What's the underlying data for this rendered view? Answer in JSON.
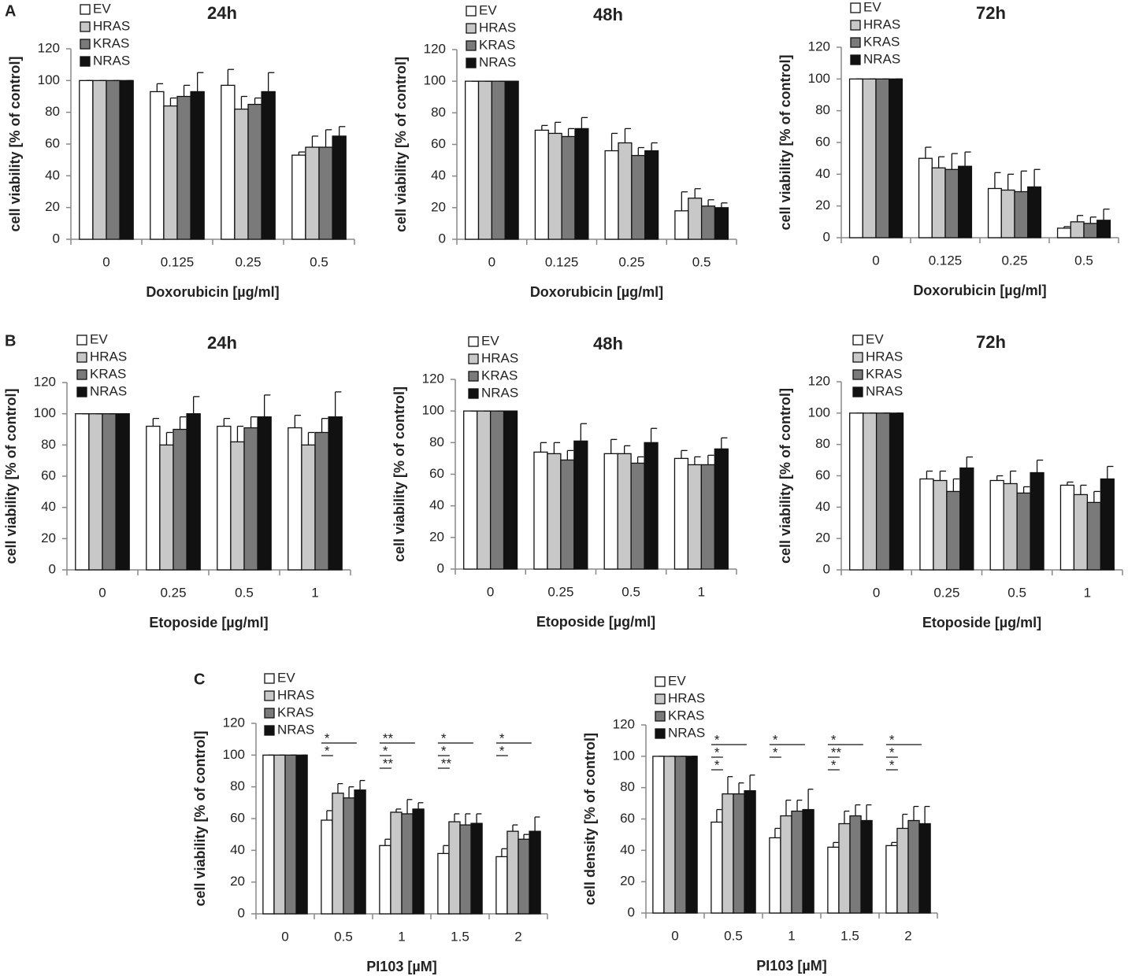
{
  "panels": [
    "A",
    "B",
    "C"
  ],
  "chart_data": [
    {
      "type": "bar",
      "title": "24h",
      "xlabel": "Doxorubicin [µg/ml]",
      "ylabel": "cell viability [% of control]",
      "categories": [
        "0",
        "0.125",
        "0.25",
        "0.5"
      ],
      "ylim": [
        0,
        120
      ],
      "yticks": [
        0,
        20,
        40,
        60,
        80,
        100,
        120
      ],
      "series": [
        {
          "name": "EV",
          "color": "#ffffff",
          "values": [
            100,
            93,
            97,
            53
          ],
          "errors": [
            0,
            5,
            10,
            2
          ]
        },
        {
          "name": "HRAS",
          "color": "#c8c8c8",
          "values": [
            100,
            84,
            82,
            58
          ],
          "errors": [
            0,
            5,
            8,
            7
          ]
        },
        {
          "name": "KRAS",
          "color": "#7a7a7a",
          "values": [
            100,
            90,
            85,
            58
          ],
          "errors": [
            0,
            7,
            4,
            11
          ]
        },
        {
          "name": "NRAS",
          "color": "#111111",
          "values": [
            100,
            93,
            93,
            65
          ],
          "errors": [
            0,
            12,
            12,
            6
          ]
        }
      ]
    },
    {
      "type": "bar",
      "title": "48h",
      "xlabel": "Doxorubicin [µg/ml]",
      "ylabel": "cell viability [% of control]",
      "categories": [
        "0",
        "0.125",
        "0.25",
        "0.5"
      ],
      "ylim": [
        0,
        120
      ],
      "yticks": [
        0,
        20,
        40,
        60,
        80,
        100,
        120
      ],
      "series": [
        {
          "name": "EV",
          "color": "#ffffff",
          "values": [
            100,
            69,
            56,
            18
          ],
          "errors": [
            0,
            3,
            11,
            12
          ]
        },
        {
          "name": "HRAS",
          "color": "#c8c8c8",
          "values": [
            100,
            67,
            61,
            26
          ],
          "errors": [
            0,
            7,
            9,
            6
          ]
        },
        {
          "name": "KRAS",
          "color": "#7a7a7a",
          "values": [
            100,
            65,
            53,
            21
          ],
          "errors": [
            0,
            5,
            5,
            4
          ]
        },
        {
          "name": "NRAS",
          "color": "#111111",
          "values": [
            100,
            70,
            56,
            20
          ],
          "errors": [
            0,
            7,
            5,
            3
          ]
        }
      ]
    },
    {
      "type": "bar",
      "title": "72h",
      "xlabel": "Doxorubicin [µg/ml]",
      "ylabel": "cell viability [% of control]",
      "categories": [
        "0",
        "0.125",
        "0.25",
        "0.5"
      ],
      "ylim": [
        0,
        120
      ],
      "yticks": [
        0,
        20,
        40,
        60,
        80,
        100,
        120
      ],
      "series": [
        {
          "name": "EV",
          "color": "#ffffff",
          "values": [
            100,
            50,
            31,
            6
          ],
          "errors": [
            0,
            7,
            10,
            1
          ]
        },
        {
          "name": "HRAS",
          "color": "#c8c8c8",
          "values": [
            100,
            44,
            30,
            10
          ],
          "errors": [
            0,
            7,
            10,
            4
          ]
        },
        {
          "name": "KRAS",
          "color": "#7a7a7a",
          "values": [
            100,
            43,
            29,
            9
          ],
          "errors": [
            0,
            10,
            13,
            4
          ]
        },
        {
          "name": "NRAS",
          "color": "#111111",
          "values": [
            100,
            45,
            32,
            11
          ],
          "errors": [
            0,
            9,
            11,
            7
          ]
        }
      ]
    },
    {
      "type": "bar",
      "title": "24h",
      "xlabel": "Etoposide [µg/ml]",
      "ylabel": "cell viability [% of control]",
      "categories": [
        "0",
        "0.25",
        "0.5",
        "1"
      ],
      "ylim": [
        0,
        120
      ],
      "yticks": [
        0,
        20,
        40,
        60,
        80,
        100,
        120
      ],
      "series": [
        {
          "name": "EV",
          "color": "#ffffff",
          "values": [
            100,
            92,
            92,
            91
          ],
          "errors": [
            0,
            5,
            5,
            8
          ]
        },
        {
          "name": "HRAS",
          "color": "#c8c8c8",
          "values": [
            100,
            80,
            82,
            80
          ],
          "errors": [
            0,
            8,
            10,
            8
          ]
        },
        {
          "name": "KRAS",
          "color": "#7a7a7a",
          "values": [
            100,
            90,
            91,
            88
          ],
          "errors": [
            0,
            8,
            7,
            9
          ]
        },
        {
          "name": "NRAS",
          "color": "#111111",
          "values": [
            100,
            100,
            98,
            98
          ],
          "errors": [
            0,
            11,
            14,
            16
          ]
        }
      ]
    },
    {
      "type": "bar",
      "title": "48h",
      "xlabel": "Etoposide [µg/ml]",
      "ylabel": "cell viability [% of control]",
      "categories": [
        "0",
        "0.25",
        "0.5",
        "1"
      ],
      "ylim": [
        0,
        120
      ],
      "yticks": [
        0,
        20,
        40,
        60,
        80,
        100,
        120
      ],
      "series": [
        {
          "name": "EV",
          "color": "#ffffff",
          "values": [
            100,
            74,
            73,
            70
          ],
          "errors": [
            0,
            6,
            9,
            5
          ]
        },
        {
          "name": "HRAS",
          "color": "#c8c8c8",
          "values": [
            100,
            73,
            73,
            66
          ],
          "errors": [
            0,
            7,
            5,
            5
          ]
        },
        {
          "name": "KRAS",
          "color": "#7a7a7a",
          "values": [
            100,
            69,
            67,
            66
          ],
          "errors": [
            0,
            6,
            4,
            6
          ]
        },
        {
          "name": "NRAS",
          "color": "#111111",
          "values": [
            100,
            81,
            80,
            76
          ],
          "errors": [
            0,
            11,
            9,
            7
          ]
        }
      ]
    },
    {
      "type": "bar",
      "title": "72h",
      "xlabel": "Etoposide [µg/ml]",
      "ylabel": "cell viability [% of control]",
      "categories": [
        "0",
        "0.25",
        "0.5",
        "1"
      ],
      "ylim": [
        0,
        120
      ],
      "yticks": [
        0,
        20,
        40,
        60,
        80,
        100,
        120
      ],
      "series": [
        {
          "name": "EV",
          "color": "#ffffff",
          "values": [
            100,
            58,
            57,
            54
          ],
          "errors": [
            0,
            5,
            3,
            2
          ]
        },
        {
          "name": "HRAS",
          "color": "#c8c8c8",
          "values": [
            100,
            57,
            55,
            48
          ],
          "errors": [
            0,
            6,
            8,
            6
          ]
        },
        {
          "name": "KRAS",
          "color": "#7a7a7a",
          "values": [
            100,
            50,
            49,
            43
          ],
          "errors": [
            0,
            8,
            4,
            7
          ]
        },
        {
          "name": "NRAS",
          "color": "#111111",
          "values": [
            100,
            65,
            62,
            58
          ],
          "errors": [
            0,
            7,
            8,
            8
          ]
        }
      ]
    },
    {
      "type": "bar",
      "xlabel": "PI103  [µM]",
      "ylabel": "cell viability [% of control]",
      "categories": [
        "0",
        "0.5",
        "1",
        "1.5",
        "2"
      ],
      "ylim": [
        0,
        120
      ],
      "yticks": [
        0,
        20,
        40,
        60,
        80,
        100,
        120
      ],
      "series": [
        {
          "name": "EV",
          "color": "#ffffff",
          "values": [
            100,
            59,
            43,
            38,
            36
          ],
          "errors": [
            0,
            6,
            4,
            5,
            5
          ]
        },
        {
          "name": "HRAS",
          "color": "#c8c8c8",
          "values": [
            100,
            76,
            64,
            58,
            52
          ],
          "errors": [
            0,
            6,
            2,
            5,
            4
          ]
        },
        {
          "name": "KRAS",
          "color": "#7a7a7a",
          "values": [
            100,
            73,
            63,
            56,
            47
          ],
          "errors": [
            0,
            7,
            9,
            7,
            3
          ]
        },
        {
          "name": "NRAS",
          "color": "#111111",
          "values": [
            100,
            78,
            66,
            57,
            52
          ],
          "errors": [
            0,
            6,
            4,
            6,
            9
          ]
        }
      ],
      "significance": [
        [],
        [
          "*",
          "*"
        ],
        [
          "**",
          "*",
          "**"
        ],
        [
          "*",
          "*",
          "**"
        ],
        [
          "*",
          "*"
        ]
      ]
    },
    {
      "type": "bar",
      "xlabel": "PI103  [µM]",
      "ylabel": "cell density [% of control]",
      "categories": [
        "0",
        "0.5",
        "1",
        "1.5",
        "2"
      ],
      "ylim": [
        0,
        120
      ],
      "yticks": [
        0,
        20,
        40,
        60,
        80,
        100,
        120
      ],
      "series": [
        {
          "name": "EV",
          "color": "#ffffff",
          "values": [
            100,
            58,
            48,
            42,
            43
          ],
          "errors": [
            0,
            8,
            6,
            3,
            2
          ]
        },
        {
          "name": "HRAS",
          "color": "#c8c8c8",
          "values": [
            100,
            76,
            62,
            57,
            54
          ],
          "errors": [
            0,
            11,
            10,
            8,
            9
          ]
        },
        {
          "name": "KRAS",
          "color": "#7a7a7a",
          "values": [
            100,
            76,
            65,
            62,
            59
          ],
          "errors": [
            0,
            7,
            7,
            7,
            9
          ]
        },
        {
          "name": "NRAS",
          "color": "#111111",
          "values": [
            100,
            78,
            66,
            59,
            57
          ],
          "errors": [
            0,
            10,
            13,
            10,
            11
          ]
        }
      ],
      "significance": [
        [],
        [
          "*",
          "*",
          "*"
        ],
        [
          "*",
          "*"
        ],
        [
          "*",
          "**",
          "*"
        ],
        [
          "*",
          "*",
          "*"
        ]
      ]
    }
  ]
}
